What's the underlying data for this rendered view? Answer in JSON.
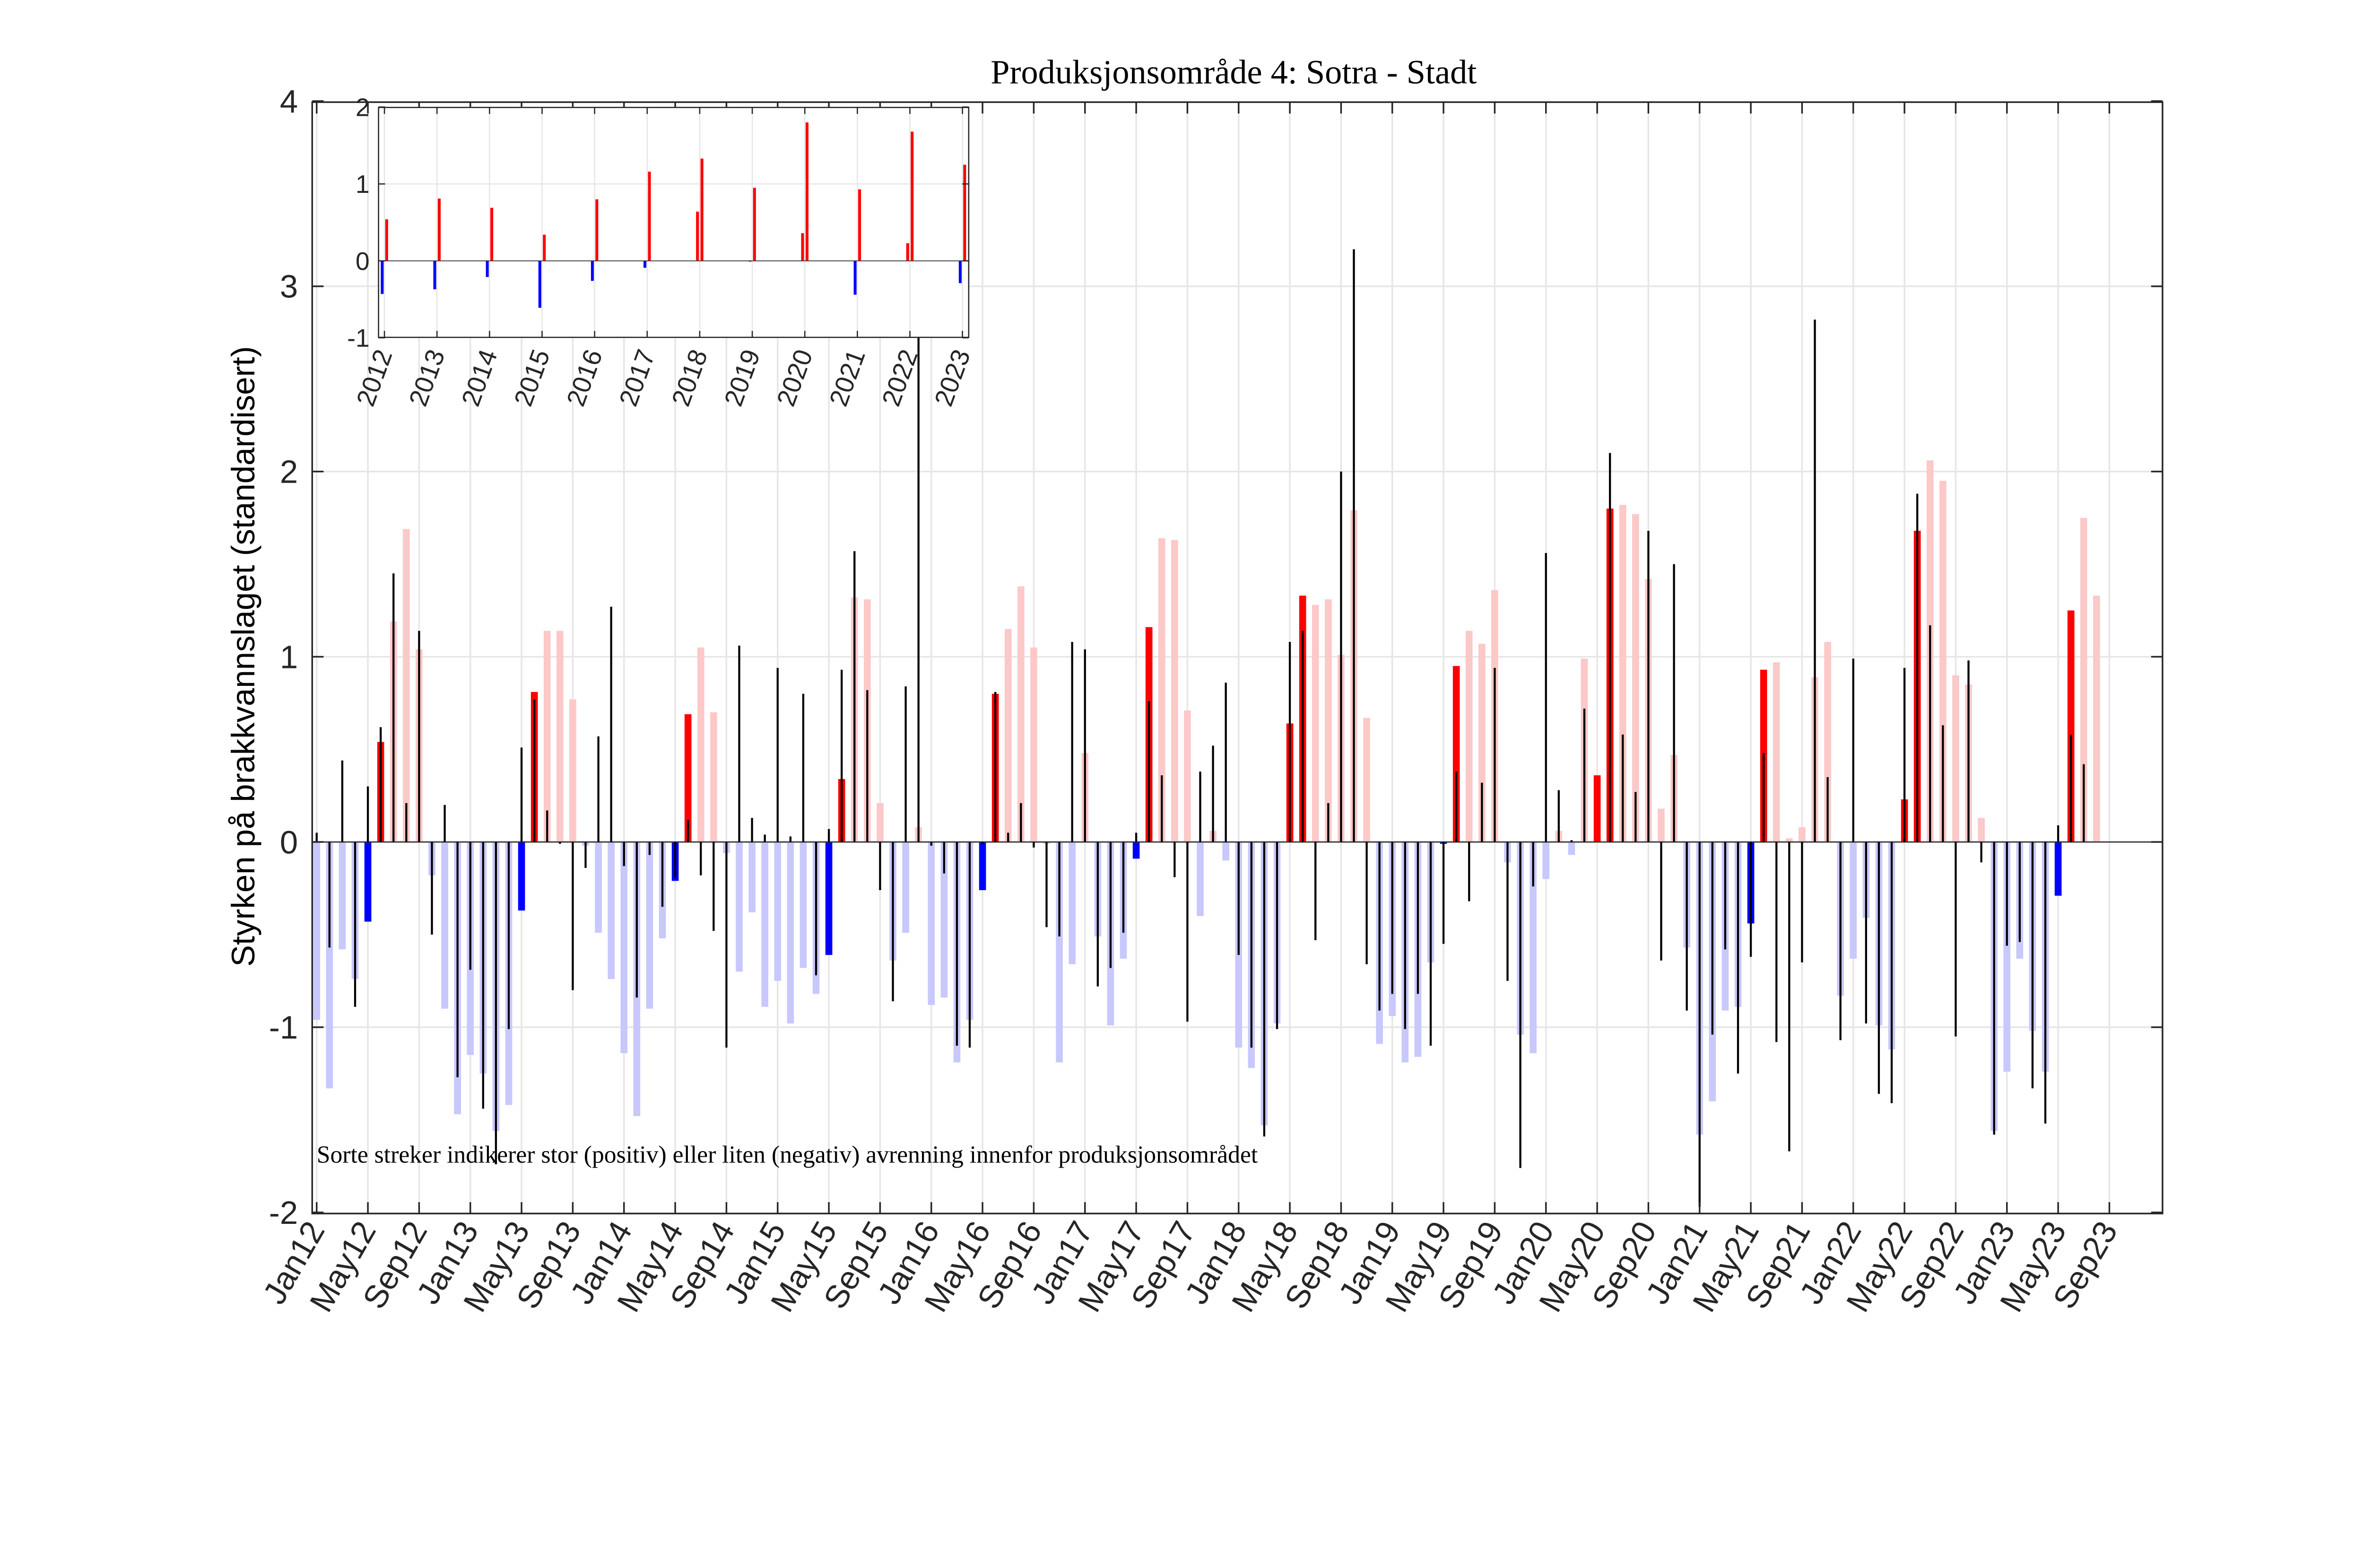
{
  "chart_data": [
    {
      "type": "bar",
      "title": "Produksjonsområde 4: Sotra - Stadt",
      "ylabel": "Styrken på brakkvannslaget (standardisert)",
      "xlabel": "",
      "annotation": "Sorte streker indikerer stor (positiv) eller liten (negativ) avrenning innenfor produksjonsområdet",
      "ylim": [
        -2,
        4
      ],
      "yticks": [
        "-2",
        "-1",
        "0",
        "1",
        "2",
        "3",
        "4"
      ],
      "grid": true,
      "start_month": "2012-01",
      "xtick_labels": [
        "Jan12",
        "May12",
        "Sep12",
        "Jan13",
        "May13",
        "Sep13",
        "Jan14",
        "May14",
        "Sep14",
        "Jan15",
        "May15",
        "Sep15",
        "Jan16",
        "May16",
        "Sep16",
        "Jan17",
        "May17",
        "Sep17",
        "Jan18",
        "May18",
        "Sep18",
        "Jan19",
        "May19",
        "Sep19",
        "Jan20",
        "May20",
        "Sep20",
        "Jan21",
        "May21",
        "Sep21",
        "Jan22",
        "May22",
        "Sep22",
        "Jan23",
        "May23",
        "Sep23"
      ],
      "highlight_months": [
        "May",
        "Jun"
      ],
      "colors": {
        "pos_highlight": "#ff0000",
        "neg_highlight": "#0000ff",
        "pos": "#fcc8c8",
        "neg": "#c8c8fc",
        "runoff": "#000000"
      },
      "series": [
        {
          "key": "brakkvann",
          "values": [
            -0.96,
            -1.33,
            -0.58,
            -0.74,
            -0.43,
            0.54,
            1.19,
            1.69,
            1.04,
            -0.18,
            -0.9,
            -1.47,
            -1.15,
            -1.25,
            -1.56,
            -1.42,
            -0.37,
            0.81,
            1.14,
            1.14,
            0.77,
            -0.02,
            -0.49,
            -0.74,
            -1.14,
            -1.48,
            -0.9,
            -0.52,
            -0.21,
            0.69,
            1.05,
            0.7,
            -0.06,
            -0.7,
            -0.38,
            -0.89,
            -0.75,
            -0.98,
            -0.68,
            -0.82,
            -0.61,
            0.34,
            1.32,
            1.31,
            0.21,
            -0.64,
            -0.49,
            0.08,
            -0.88,
            -0.84,
            -1.19,
            -0.96,
            -0.26,
            0.8,
            1.15,
            1.38,
            1.05,
            -0.01,
            -1.19,
            -0.66,
            0.48,
            -0.51,
            -0.99,
            -0.63,
            -0.09,
            1.16,
            1.64,
            1.63,
            0.71,
            -0.4,
            0.06,
            -0.1,
            -1.11,
            -1.22,
            -1.53,
            -0.98,
            0.64,
            1.33,
            1.28,
            1.31,
            1.01,
            1.79,
            0.67,
            -1.09,
            -0.94,
            -1.19,
            -1.16,
            -0.65,
            -0.01,
            0.95,
            1.14,
            1.07,
            1.36,
            -0.11,
            -1.04,
            -1.14,
            -0.2,
            0.06,
            -0.07,
            0.99,
            0.36,
            1.8,
            1.82,
            1.77,
            1.42,
            0.18,
            0.47,
            -0.57,
            -1.58,
            -1.4,
            -0.91,
            -0.89,
            -0.44,
            0.93,
            0.97,
            0.02,
            0.08,
            0.89,
            1.08,
            -0.83,
            -0.63,
            -0.41,
            -0.99,
            -1.12,
            0.23,
            1.68,
            2.06,
            1.95,
            0.9,
            0.85,
            0.13,
            -1.56,
            -1.24,
            -0.63,
            -1.02,
            -1.24,
            -0.29,
            1.25,
            1.75,
            1.33
          ]
        },
        {
          "key": "avrenning",
          "values": [
            0.05,
            -0.57,
            0.44,
            -0.89,
            0.3,
            0.62,
            1.45,
            0.21,
            1.14,
            -0.5,
            0.2,
            -1.27,
            -0.69,
            -1.44,
            -1.74,
            -1.01,
            0.51,
            0.77,
            0.17,
            -0.01,
            -0.8,
            -0.14,
            0.57,
            1.27,
            -0.13,
            -0.84,
            -0.07,
            -0.35,
            -0.19,
            0.12,
            -0.18,
            -0.48,
            -1.11,
            1.06,
            0.13,
            0.04,
            0.94,
            0.03,
            0.8,
            -0.72,
            0.07,
            0.93,
            1.57,
            0.82,
            -0.26,
            -0.86,
            0.84,
            3.0,
            -0.02,
            -0.17,
            -1.1,
            -1.11,
            -0.01,
            0.81,
            0.05,
            0.21,
            -0.03,
            -0.46,
            -0.51,
            1.08,
            1.04,
            -0.78,
            -0.68,
            -0.49,
            0.05,
            0.76,
            0.36,
            -0.19,
            -0.97,
            0.38,
            0.52,
            0.86,
            -0.61,
            -1.11,
            -1.59,
            -1.01,
            1.08,
            1.14,
            -0.53,
            0.21,
            2.0,
            3.2,
            -0.66,
            -0.91,
            -0.82,
            -1.01,
            -0.82,
            -1.1,
            -0.55,
            0.38,
            -0.32,
            0.32,
            0.94,
            -0.75,
            -1.76,
            -0.24,
            1.56,
            0.28,
            0.01,
            0.72,
            0.0,
            2.1,
            0.58,
            0.27,
            1.68,
            -0.64,
            1.5,
            -0.91,
            -1.97,
            -1.04,
            -0.58,
            -1.25,
            -0.62,
            0.48,
            -1.08,
            -1.67,
            -0.65,
            2.82,
            0.35,
            -1.07,
            0.99,
            -0.98,
            -1.36,
            -1.41,
            0.94,
            1.88,
            1.17,
            0.63,
            -1.05,
            0.98,
            -0.11,
            -1.58,
            -0.56,
            -0.54,
            -1.33,
            -1.52,
            0.09,
            0.58,
            0.42,
            null
          ]
        }
      ]
    },
    {
      "type": "bar",
      "ylim": [
        -1,
        2
      ],
      "yticks": [
        "-1",
        "0",
        "1",
        "2"
      ],
      "grid": true,
      "categories": [
        "2012",
        "2013",
        "2014",
        "2015",
        "2016",
        "2017",
        "2018",
        "2019",
        "2020",
        "2021",
        "2022",
        "2023"
      ],
      "series": [
        {
          "key": "may",
          "values": [
            -0.43,
            -0.37,
            -0.21,
            -0.61,
            -0.26,
            -0.09,
            0.64,
            -0.01,
            0.36,
            -0.44,
            0.23,
            -0.29
          ]
        },
        {
          "key": "jun",
          "values": [
            0.54,
            0.81,
            0.69,
            0.34,
            0.8,
            1.16,
            1.33,
            0.95,
            1.8,
            0.93,
            1.68,
            1.25
          ]
        }
      ]
    }
  ]
}
